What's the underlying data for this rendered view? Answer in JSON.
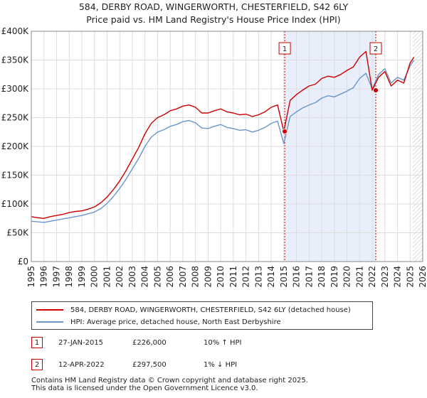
{
  "title_line1": "584, DERBY ROAD, WINGERWORTH, CHESTERFIELD, S42 6LY",
  "title_line2": "Price paid vs. HM Land Registry's House Price Index (HPI)",
  "colors": {
    "property": "#cc0000",
    "hpi": "#6b96cc",
    "shade": "#e8eefa",
    "grid": "#dddddd"
  },
  "chart_data": {
    "type": "line",
    "xlim": [
      1995,
      2026
    ],
    "ylim": [
      0,
      400000
    ],
    "x_ticks": [
      "1995",
      "1996",
      "1997",
      "1998",
      "1999",
      "2000",
      "2001",
      "2002",
      "2003",
      "2004",
      "2005",
      "2006",
      "2007",
      "2008",
      "2009",
      "2010",
      "2011",
      "2012",
      "2013",
      "2014",
      "2015",
      "2016",
      "2017",
      "2018",
      "2019",
      "2020",
      "2021",
      "2022",
      "2023",
      "2024",
      "2025",
      "2026"
    ],
    "y_ticks": [
      "£0",
      "£50K",
      "£100K",
      "£150K",
      "£200K",
      "£250K",
      "£300K",
      "£350K",
      "£400K"
    ],
    "series": [
      {
        "name": "584, DERBY ROAD, WINGERWORTH, CHESTERFIELD, S42 6LY (detached house)",
        "color": "#cc0000",
        "x": [
          1995,
          1995.5,
          1996,
          1996.5,
          1997,
          1997.5,
          1998,
          1998.5,
          1999,
          1999.5,
          2000,
          2000.5,
          2001,
          2001.5,
          2002,
          2002.5,
          2003,
          2003.5,
          2004,
          2004.5,
          2005,
          2005.5,
          2006,
          2006.5,
          2007,
          2007.5,
          2008,
          2008.5,
          2009,
          2009.5,
          2010,
          2010.5,
          2011,
          2011.5,
          2012,
          2012.5,
          2013,
          2013.5,
          2014,
          2014.5,
          2015,
          2015.5,
          2016,
          2016.5,
          2017,
          2017.5,
          2018,
          2018.5,
          2019,
          2019.5,
          2020,
          2020.5,
          2021,
          2021.5,
          2022,
          2022.5,
          2023,
          2023.5,
          2024,
          2024.5,
          2025,
          2025.3
        ],
        "values": [
          78000,
          76000,
          75000,
          78000,
          80000,
          82000,
          85000,
          87000,
          88000,
          91000,
          95000,
          102000,
          112000,
          125000,
          140000,
          158000,
          178000,
          198000,
          222000,
          240000,
          250000,
          255000,
          262000,
          265000,
          270000,
          272000,
          268000,
          258000,
          258000,
          262000,
          265000,
          260000,
          258000,
          255000,
          256000,
          252000,
          255000,
          260000,
          268000,
          272000,
          226000,
          280000,
          290000,
          298000,
          305000,
          308000,
          318000,
          322000,
          320000,
          325000,
          332000,
          338000,
          355000,
          365000,
          297500,
          320000,
          330000,
          305000,
          315000,
          310000,
          345000,
          355000
        ]
      },
      {
        "name": "HPI: Average price, detached house, North East Derbyshire",
        "color": "#6b96cc",
        "x": [
          1995,
          1995.5,
          1996,
          1996.5,
          1997,
          1997.5,
          1998,
          1998.5,
          1999,
          1999.5,
          2000,
          2000.5,
          2001,
          2001.5,
          2002,
          2002.5,
          2003,
          2003.5,
          2004,
          2004.5,
          2005,
          2005.5,
          2006,
          2006.5,
          2007,
          2007.5,
          2008,
          2008.5,
          2009,
          2009.5,
          2010,
          2010.5,
          2011,
          2011.5,
          2012,
          2012.5,
          2013,
          2013.5,
          2014,
          2014.5,
          2015,
          2015.5,
          2016,
          2016.5,
          2017,
          2017.5,
          2018,
          2018.5,
          2019,
          2019.5,
          2020,
          2020.5,
          2021,
          2021.5,
          2022,
          2022.5,
          2023,
          2023.5,
          2024,
          2024.5,
          2025,
          2025.3
        ],
        "values": [
          70000,
          69000,
          68000,
          70000,
          72000,
          74000,
          76000,
          78000,
          80000,
          83000,
          86000,
          92000,
          101000,
          113000,
          127000,
          143000,
          161000,
          179000,
          200000,
          216000,
          225000,
          229000,
          235000,
          238000,
          243000,
          245000,
          241000,
          232000,
          231000,
          235000,
          238000,
          233000,
          231000,
          228000,
          229000,
          225000,
          228000,
          233000,
          240000,
          244000,
          205000,
          252000,
          260000,
          267000,
          272000,
          276000,
          284000,
          288000,
          286000,
          291000,
          296000,
          302000,
          318000,
          327000,
          300000,
          325000,
          335000,
          310000,
          320000,
          315000,
          340000,
          350000
        ]
      }
    ],
    "shaded_range": [
      2015.07,
      2022.28
    ],
    "sales": [
      {
        "label": "1",
        "x": 2015.07,
        "value": 226000
      },
      {
        "label": "2",
        "x": 2022.28,
        "value": 297500
      }
    ],
    "forecast_from": 2025.2
  },
  "legend": {
    "property": "584, DERBY ROAD, WINGERWORTH, CHESTERFIELD, S42 6LY (detached house)",
    "hpi": "HPI: Average price, detached house, North East Derbyshire"
  },
  "transactions": [
    {
      "num": "1",
      "date": "27-JAN-2015",
      "price": "£226,000",
      "hpi": "10% ↑ HPI"
    },
    {
      "num": "2",
      "date": "12-APR-2022",
      "price": "£297,500",
      "hpi": "1% ↓ HPI"
    }
  ],
  "footer": {
    "line1": "Contains HM Land Registry data © Crown copyright and database right 2025.",
    "line2": "This data is licensed under the Open Government Licence v3.0."
  }
}
